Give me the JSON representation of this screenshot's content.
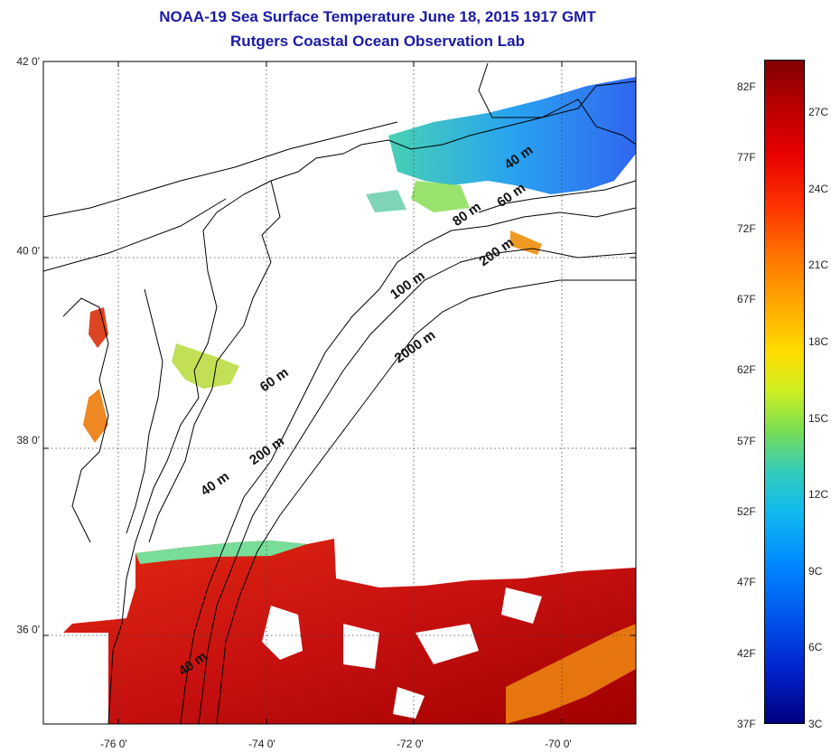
{
  "title_line1": "NOAA-19 Sea Surface Temperature June 18, 2015 1917 GMT",
  "title_line2": "Rutgers Coastal Ocean Observation Lab",
  "lat_labels": [
    {
      "text": "42 0'",
      "lat": 42
    },
    {
      "text": "40 0'",
      "lat": 40
    },
    {
      "text": "38 0'",
      "lat": 38
    },
    {
      "text": "36 0'",
      "lat": 36
    }
  ],
  "lon_labels": [
    {
      "text": "-76 0'",
      "lon": -76
    },
    {
      "text": "-74 0'",
      "lon": -74
    },
    {
      "text": "-72 0'",
      "lon": -72
    },
    {
      "text": "-70 0'",
      "lon": -70
    }
  ],
  "contour_labels": [
    {
      "text": "40 m",
      "lon": -70.5,
      "lat": 40.95
    },
    {
      "text": "60 m",
      "lon": -70.6,
      "lat": 40.55
    },
    {
      "text": "80 m",
      "lon": -71.2,
      "lat": 40.35
    },
    {
      "text": "200 m",
      "lon": -70.8,
      "lat": 39.95
    },
    {
      "text": "100 m",
      "lon": -72.0,
      "lat": 39.6
    },
    {
      "text": "2000 m",
      "lon": -71.9,
      "lat": 38.95
    },
    {
      "text": "60 m",
      "lon": -73.8,
      "lat": 38.6
    },
    {
      "text": "200 m",
      "lon": -73.9,
      "lat": 37.85
    },
    {
      "text": "40 m",
      "lon": -74.6,
      "lat": 37.5
    },
    {
      "text": "40 m",
      "lon": -74.9,
      "lat": 35.6
    }
  ],
  "colorbar": {
    "fahrenheit": [
      "82F",
      "77F",
      "72F",
      "67F",
      "62F",
      "57F",
      "52F",
      "47F",
      "42F",
      "37F"
    ],
    "celsius": [
      "27C",
      "24C",
      "21C",
      "18C",
      "15C",
      "12C",
      "9C",
      "6C",
      "3C"
    ],
    "top_color": "#800000",
    "bottom_color": "#000080"
  },
  "extent": {
    "lon_min": -76.95,
    "lon_max": -68.95,
    "lat_min": 35.0,
    "lat_max": 42.0
  },
  "colors": {
    "title": "#1a1aa6",
    "warm_ocean": "#c81010",
    "cool_ocean": "#1a66ee",
    "land_line": "#000000"
  }
}
